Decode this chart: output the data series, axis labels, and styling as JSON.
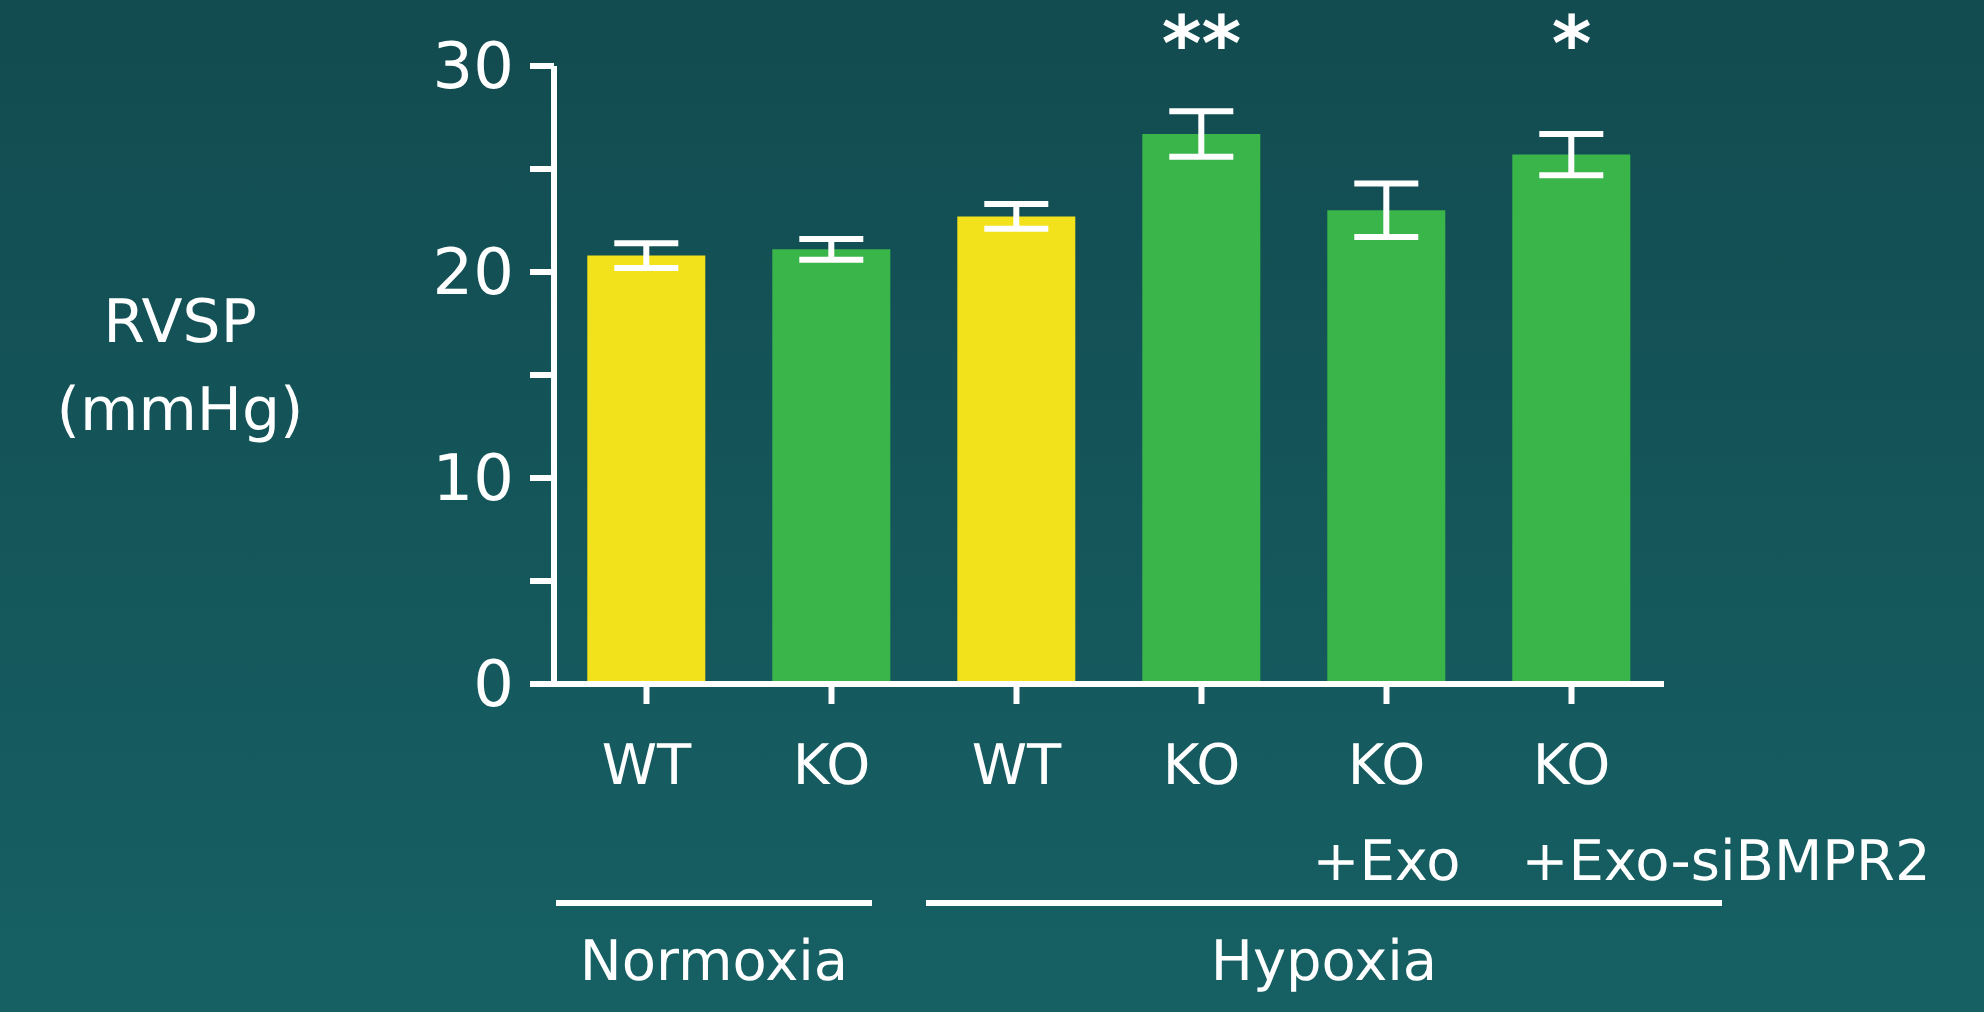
{
  "chart_data": {
    "type": "bar",
    "ylabel": "RVSP\n(mmHg)",
    "categories": [
      "WT",
      "KO",
      "WT",
      "KO",
      "KO\n+Exo",
      "KO\n+Exo-siBMPR2"
    ],
    "values": [
      20.8,
      21.1,
      22.7,
      26.7,
      23.0,
      25.7
    ],
    "errors": [
      0.6,
      0.5,
      0.6,
      1.1,
      1.3,
      1.0
    ],
    "colors": [
      "#f2e21c",
      "#3ab54a",
      "#f2e21c",
      "#3ab54a",
      "#3ab54a",
      "#3ab54a"
    ],
    "ylim": [
      0,
      30
    ],
    "yticks": [
      0,
      {
        "value": 5,
        "label": null
      },
      10,
      {
        "value": 15,
        "label": null
      },
      20,
      {
        "value": 25,
        "label": null
      },
      30
    ],
    "annotations": [
      "**",
      "*",
      "Normoxia",
      "Hypoxia"
    ]
  }
}
